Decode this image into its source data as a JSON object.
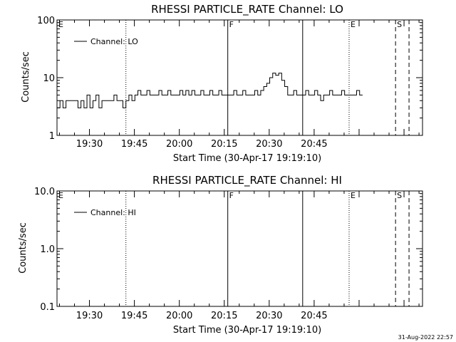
{
  "footer": {
    "date_stamp": "31-Aug-2022 22:57"
  },
  "chart_data": [
    {
      "type": "line",
      "title": "RHESSI PARTICLE_RATE Channel: LO",
      "xlabel": "Start Time (30-Apr-17 19:19:10)",
      "ylabel": "Counts/sec",
      "yscale": "log",
      "ylim": [
        1,
        100
      ],
      "yticks": [
        {
          "v": 1,
          "label": "1"
        },
        {
          "v": 10,
          "label": "10"
        },
        {
          "v": 100,
          "label": "100"
        }
      ],
      "xlim_minutes": [
        0,
        102
      ],
      "xticks": [
        {
          "m": 10.83,
          "label": "19:30"
        },
        {
          "m": 25.83,
          "label": "19:45"
        },
        {
          "m": 40.83,
          "label": "20:00"
        },
        {
          "m": 55.83,
          "label": "20:15"
        },
        {
          "m": 70.83,
          "label": "20:30"
        },
        {
          "m": 85.83,
          "label": "20:45"
        }
      ],
      "legend": {
        "position": "top-left",
        "label": "Channel: LO"
      },
      "markers": [
        {
          "m": 0,
          "label": "E",
          "style": "dotted"
        },
        {
          "m": 23,
          "label": "",
          "style": "dotted"
        },
        {
          "m": 57,
          "label": "F",
          "style": "solid"
        },
        {
          "m": 82,
          "label": "",
          "style": "solid"
        },
        {
          "m": 97.5,
          "label": "E",
          "style": "dotted"
        },
        {
          "m": 113,
          "label": "S",
          "style": "dashed"
        },
        {
          "m": 117.5,
          "label": "",
          "style": "dashed"
        }
      ],
      "series": [
        {
          "name": "Channel: LO",
          "minutes": [
            0,
            1,
            2,
            3,
            4,
            5,
            6,
            7,
            8,
            9,
            10,
            11,
            12,
            13,
            14,
            15,
            16,
            17,
            18,
            19,
            20,
            21,
            22,
            23,
            24,
            25,
            26,
            27,
            28,
            29,
            30,
            31,
            32,
            33,
            34,
            35,
            36,
            37,
            38,
            39,
            40,
            41,
            42,
            43,
            44,
            45,
            46,
            47,
            48,
            49,
            50,
            51,
            52,
            53,
            54,
            55,
            56,
            57,
            58,
            59,
            60,
            61,
            62,
            63,
            64,
            65,
            66,
            67,
            68,
            69,
            70,
            71,
            72,
            73,
            74,
            75,
            76,
            77,
            78,
            79,
            80,
            81,
            82,
            83,
            84,
            85,
            86,
            87,
            88,
            89,
            90,
            91,
            92,
            93,
            94,
            95,
            96,
            97,
            98,
            99,
            100,
            101,
            102
          ],
          "values": [
            3,
            4,
            3,
            4,
            4,
            4,
            4,
            3,
            4,
            3,
            5,
            3,
            4,
            5,
            3,
            4,
            4,
            4,
            4,
            5,
            4,
            4,
            3,
            4,
            5,
            4,
            5,
            6,
            5,
            5,
            6,
            5,
            5,
            5,
            6,
            5,
            5,
            6,
            5,
            5,
            5,
            6,
            5,
            6,
            5,
            6,
            5,
            5,
            6,
            5,
            5,
            6,
            5,
            5,
            6,
            5,
            5,
            5,
            5,
            6,
            5,
            5,
            6,
            5,
            5,
            5,
            6,
            5,
            6,
            7,
            8,
            10,
            12,
            11,
            12,
            9,
            7,
            5,
            5,
            6,
            5,
            5,
            5,
            6,
            5,
            5,
            6,
            5,
            4,
            5,
            5,
            6,
            5,
            5,
            5,
            6,
            5,
            5,
            5,
            5,
            6,
            5,
            5
          ]
        }
      ]
    },
    {
      "type": "line",
      "title": "RHESSI PARTICLE_RATE Channel: HI",
      "xlabel": "Start Time (30-Apr-17 19:19:10)",
      "ylabel": "Counts/sec",
      "yscale": "log",
      "ylim": [
        0.1,
        10
      ],
      "yticks": [
        {
          "v": 0.1,
          "label": "0.1"
        },
        {
          "v": 1,
          "label": "1.0"
        },
        {
          "v": 10,
          "label": "10.0"
        }
      ],
      "xlim_minutes": [
        0,
        102
      ],
      "xticks": [
        {
          "m": 10.83,
          "label": "19:30"
        },
        {
          "m": 25.83,
          "label": "19:45"
        },
        {
          "m": 40.83,
          "label": "20:00"
        },
        {
          "m": 55.83,
          "label": "20:15"
        },
        {
          "m": 70.83,
          "label": "20:30"
        },
        {
          "m": 85.83,
          "label": "20:45"
        }
      ],
      "legend": {
        "position": "top-left",
        "label": "Channel: HI"
      },
      "markers": [
        {
          "m": 0,
          "label": "E",
          "style": "dotted"
        },
        {
          "m": 23,
          "label": "",
          "style": "dotted"
        },
        {
          "m": 57,
          "label": "F",
          "style": "solid"
        },
        {
          "m": 82,
          "label": "",
          "style": "solid"
        },
        {
          "m": 97.5,
          "label": "E",
          "style": "dotted"
        },
        {
          "m": 113,
          "label": "S",
          "style": "dashed"
        },
        {
          "m": 117.5,
          "label": "",
          "style": "dashed"
        }
      ],
      "series": [
        {
          "name": "Channel: HI",
          "minutes": [],
          "values": []
        }
      ]
    }
  ]
}
